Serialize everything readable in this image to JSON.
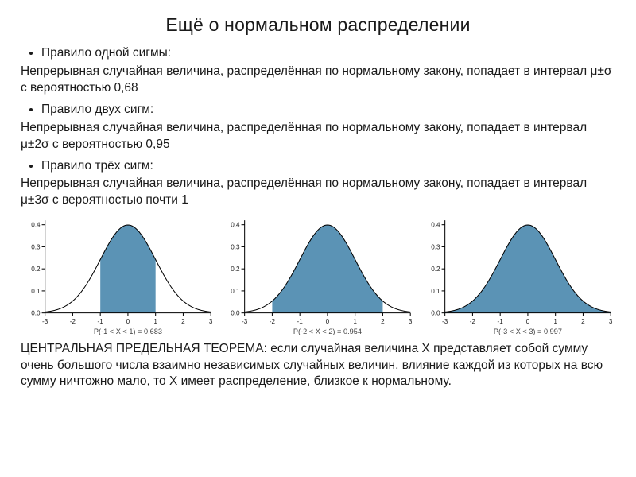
{
  "title": "Ещё о нормальном распределении",
  "rule1_head": "Правило  одной сигмы:",
  "rule1_body": "Непрерывная случайная величина, распределённая по нормальному закону, попадает в интервал μ±σ с вероятностью 0,68",
  "rule2_head": "Правило двух сигм:",
  "rule2_body": "Непрерывная случайная величина, распределённая по нормальному закону, попадает в интервал μ±2σ с вероятностью 0,95",
  "rule3_head": "Правило трёх сигм:",
  "rule3_body": "Непрерывная случайная величина, распределённая по нормальному закону, попадает в интервал μ±3σ с вероятностью почти 1",
  "clt_pre": "ЦЕНТРАЛЬНАЯ ПРЕДЕЛЬНАЯ ТЕОРЕМА: если случайная величина Х представляет собой сумму ",
  "clt_u1": "очень большого числа ",
  "clt_mid": "взаимно независимых случайных величин, влияние каждой из которых на всю сумму ",
  "clt_u2": "ничтожно мало",
  "clt_post": ", то X имеет распределение, близкое к нормальному.",
  "charts": {
    "fill_color": "#5b93b5",
    "curve_color": "#000000",
    "xlim": [
      -3,
      3
    ],
    "xticks": [
      -3,
      -2,
      -1,
      0,
      1,
      2,
      3
    ],
    "ylim": [
      0,
      0.42
    ],
    "yticks": [
      0.0,
      0.1,
      0.2,
      0.3,
      0.4
    ],
    "yticklabels": [
      "0.0",
      "0.1",
      "0.2",
      "0.3",
      "0.4"
    ],
    "panels": [
      {
        "fill_from": -1,
        "fill_to": 1,
        "caption": "P(-1 < X < 1) = 0.683"
      },
      {
        "fill_from": -2,
        "fill_to": 2,
        "caption": "P(-2 < X < 2) = 0.954"
      },
      {
        "fill_from": -3,
        "fill_to": 3,
        "caption": "P(-3 < X < 3) = 0.997"
      }
    ]
  }
}
